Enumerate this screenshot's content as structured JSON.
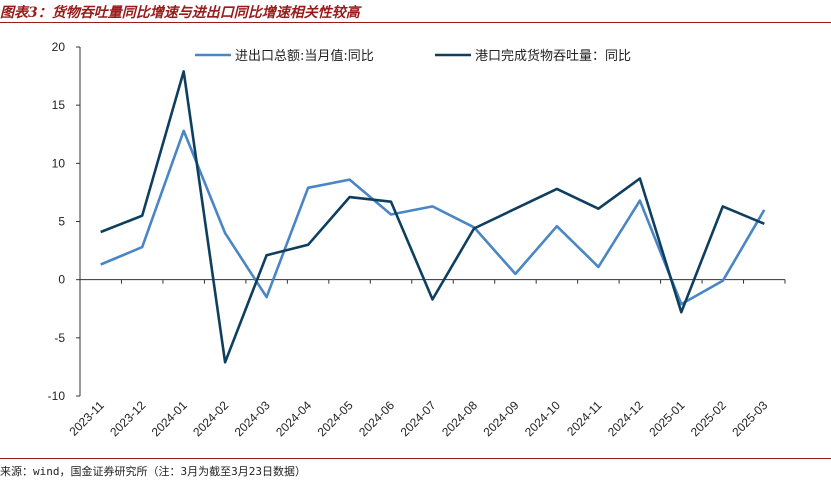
{
  "header": {
    "title": "图表3：货物吞吐量同比增速与进出口同比增速相关性较高"
  },
  "footer": {
    "source": "来源：wind，国金证券研究所（注：3月为截至3月23日数据）"
  },
  "colors": {
    "accent": "#9a1b1b",
    "series1": "#4a86c5",
    "series2": "#0e3f5e"
  },
  "chart_data": {
    "type": "line",
    "x": [
      "2023-11",
      "2023-12",
      "2024-01",
      "2024-02",
      "2024-03",
      "2024-04",
      "2024-05",
      "2024-06",
      "2024-07",
      "2024-08",
      "2024-09",
      "2024-10",
      "2024-11",
      "2024-12",
      "2025-01",
      "2025-02",
      "2025-03"
    ],
    "series": [
      {
        "name": "进出口总额:当月值:同比",
        "values": [
          1.3,
          2.8,
          12.8,
          4.0,
          -1.5,
          7.9,
          8.6,
          5.6,
          6.3,
          4.5,
          0.5,
          4.6,
          1.1,
          6.8,
          -2.1,
          -0.1,
          6.0
        ]
      },
      {
        "name": "港口完成货物吞吐量：同比",
        "values": [
          4.1,
          5.5,
          17.9,
          -7.1,
          2.1,
          3.0,
          7.1,
          6.7,
          -1.7,
          4.4,
          6.1,
          7.8,
          6.1,
          8.7,
          -2.8,
          6.3,
          4.8
        ]
      }
    ],
    "ylim": [
      -10,
      20
    ],
    "yticks": [
      -10,
      -5,
      0,
      5,
      10,
      15,
      20
    ],
    "legend_position": "top",
    "grid": false
  }
}
